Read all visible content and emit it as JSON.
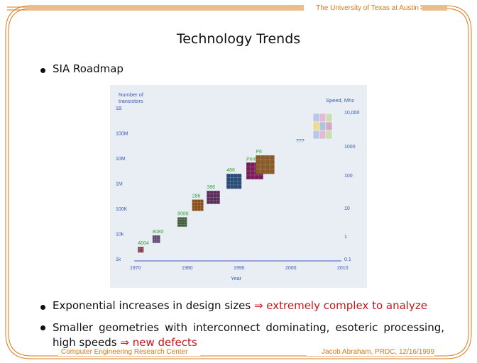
{
  "header": {
    "institution": "The University of Texas at Austin",
    "center": "Computer Engineering Research Center",
    "author_date": "Jacob Abraham, PRDC, 12/16/1999"
  },
  "slide": {
    "title": "Technology Trends",
    "bullets": [
      {
        "text": "SIA Roadmap"
      },
      {
        "text": "Exponential increases in design sizes",
        "arrow": "⇒",
        "emphasis": "extremely complex to analyze"
      },
      {
        "text": "Smaller geometries with interconnect dominating, esoteric processing, high speeds",
        "arrow": "⇒",
        "emphasis": "new defects"
      }
    ]
  },
  "colors": {
    "accent": "#d97b1a",
    "emphasis": "#c8151b",
    "chart_bg": "#e8eef3",
    "chart_label": "#3b5bb5",
    "chart_green": "#3aa53a"
  },
  "chart_data": {
    "type": "scatter",
    "title": "",
    "xlabel": "Year",
    "ylabel_left": "Number of transistors",
    "ylabel_right": "Speed, Mhz",
    "x_ticks": [
      1970,
      1980,
      1990,
      2000,
      2010
    ],
    "y_ticks_left": [
      "1k",
      "10k",
      "100K",
      "1M",
      "10M",
      "100M",
      "1B"
    ],
    "y_ticks_right": [
      "0.1",
      "1",
      "10",
      "100",
      "1000",
      "10,000"
    ],
    "points": [
      {
        "label": "4004",
        "year": 1971,
        "transistors": 2300
      },
      {
        "label": "8080",
        "year": 1974,
        "transistors": 6000
      },
      {
        "label": "8088",
        "year": 1979,
        "transistors": 29000
      },
      {
        "label": "286",
        "year": 1982,
        "transistors": 134000
      },
      {
        "label": "386",
        "year": 1985,
        "transistors": 275000
      },
      {
        "label": "486",
        "year": 1989,
        "transistors": 1200000
      },
      {
        "label": "Pentium",
        "year": 1993,
        "transistors": 3100000
      },
      {
        "label": "P6",
        "year": 1995,
        "transistors": 5500000
      },
      {
        "label": "???",
        "year": 2001,
        "transistors": null
      }
    ]
  }
}
